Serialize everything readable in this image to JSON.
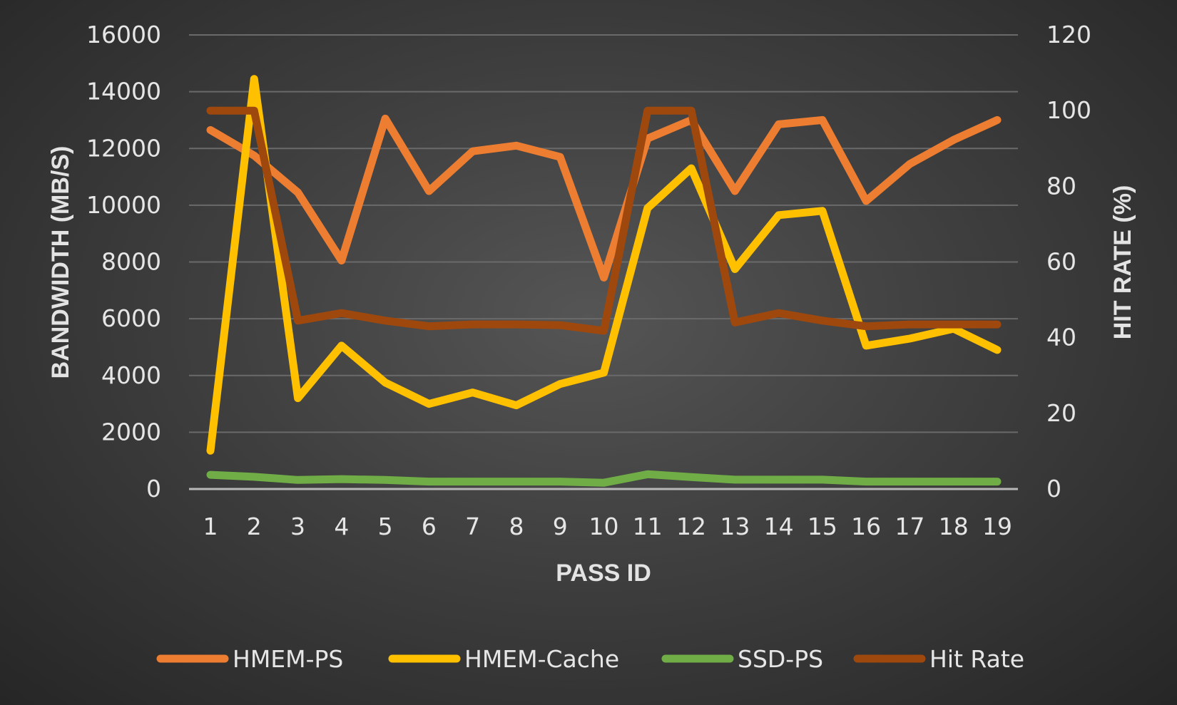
{
  "chart_data": {
    "type": "line",
    "x": [
      1,
      2,
      3,
      4,
      5,
      6,
      7,
      8,
      9,
      10,
      11,
      12,
      13,
      14,
      15,
      16,
      17,
      18,
      19
    ],
    "xlabel": "PASS ID",
    "ylabel": "BANDWIDTH (MB/S)",
    "y2label": "HIT RATE (%)",
    "ylim": [
      0,
      16000
    ],
    "y2lim": [
      0,
      120
    ],
    "yticks": [
      0,
      2000,
      4000,
      6000,
      8000,
      10000,
      12000,
      14000,
      16000
    ],
    "y2ticks": [
      0,
      20,
      40,
      60,
      80,
      100,
      120
    ],
    "grid": true,
    "legend_position": "bottom",
    "series": [
      {
        "name": "HMEM-PS",
        "axis": "left",
        "color": "#ED7D31",
        "values": [
          12650,
          11750,
          10450,
          8050,
          13050,
          10500,
          11900,
          12100,
          11700,
          7450,
          12350,
          13000,
          10500,
          12850,
          13000,
          10150,
          11450,
          12300,
          13000
        ]
      },
      {
        "name": "HMEM-Cache",
        "axis": "left",
        "color": "#FFC000",
        "values": [
          1350,
          14450,
          3200,
          5050,
          3750,
          3000,
          3400,
          2950,
          3700,
          4100,
          9900,
          11300,
          7750,
          9650,
          9800,
          5050,
          5300,
          5650,
          4900
        ]
      },
      {
        "name": "SSD-PS",
        "axis": "left",
        "color": "#70AD47",
        "values": [
          500,
          430,
          320,
          350,
          320,
          260,
          260,
          260,
          260,
          220,
          520,
          420,
          330,
          330,
          330,
          260,
          260,
          260,
          260
        ]
      },
      {
        "name": "Hit Rate",
        "axis": "right",
        "color": "#9E480E",
        "values": [
          100,
          100,
          44.5,
          46.5,
          44.5,
          43,
          43.5,
          43.5,
          43.3,
          41.8,
          100,
          100,
          44,
          46.5,
          44.5,
          43,
          43.5,
          43.5,
          43.5
        ]
      }
    ]
  }
}
